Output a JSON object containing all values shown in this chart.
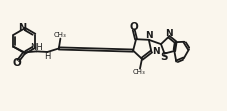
{
  "bg_color": "#faf6ed",
  "line_color": "#1a1a1a",
  "line_width": 1.3,
  "font_size": 6.5,
  "figsize": [
    2.27,
    1.11
  ],
  "dpi": 100,
  "xlim": [
    0,
    11.5
  ],
  "ylim": [
    0,
    5.5
  ]
}
